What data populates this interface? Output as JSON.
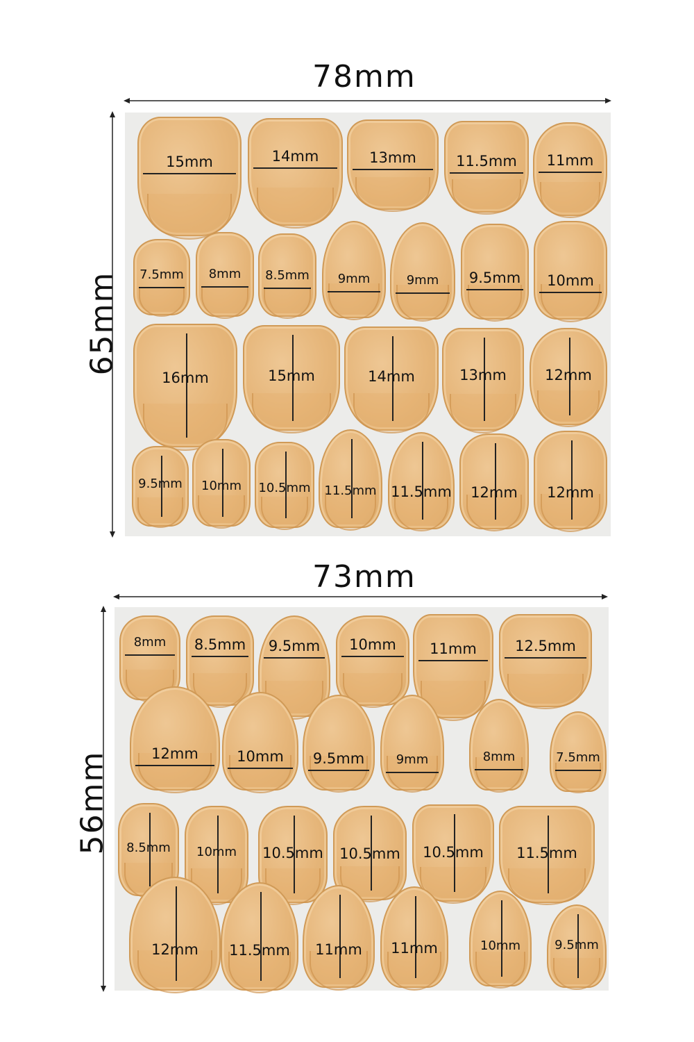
{
  "sheet1": {
    "width_label": "78mm",
    "height_label": "65mm",
    "rows": [
      [
        "15mm",
        "14mm",
        "13mm",
        "11.5mm",
        "11mm"
      ],
      [
        "7.5mm",
        "8mm",
        "8.5mm",
        "9mm",
        "9mm",
        "9.5mm",
        "10mm"
      ],
      [
        "16mm",
        "15mm",
        "14mm",
        "13mm",
        "12mm"
      ],
      [
        "9.5mm",
        "10mm",
        "10.5mm",
        "11.5mm",
        "11.5mm",
        "12mm",
        "12mm"
      ]
    ]
  },
  "sheet2": {
    "width_label": "73mm",
    "height_label": "56mm",
    "rows": [
      [
        "8mm",
        "8.5mm",
        "9.5mm",
        "10mm",
        "11mm",
        "12.5mm"
      ],
      [
        "12mm",
        "10mm",
        "9.5mm",
        "9mm",
        "8mm",
        "7.5mm"
      ],
      [
        "8.5mm",
        "10mm",
        "10.5mm",
        "10.5mm",
        "10.5mm",
        "11.5mm"
      ],
      [
        "12mm",
        "11.5mm",
        "11mm",
        "11mm",
        "10mm",
        "9.5mm"
      ]
    ]
  },
  "colors": {
    "sticker": "#e6b67a",
    "panel": "#ececea"
  }
}
